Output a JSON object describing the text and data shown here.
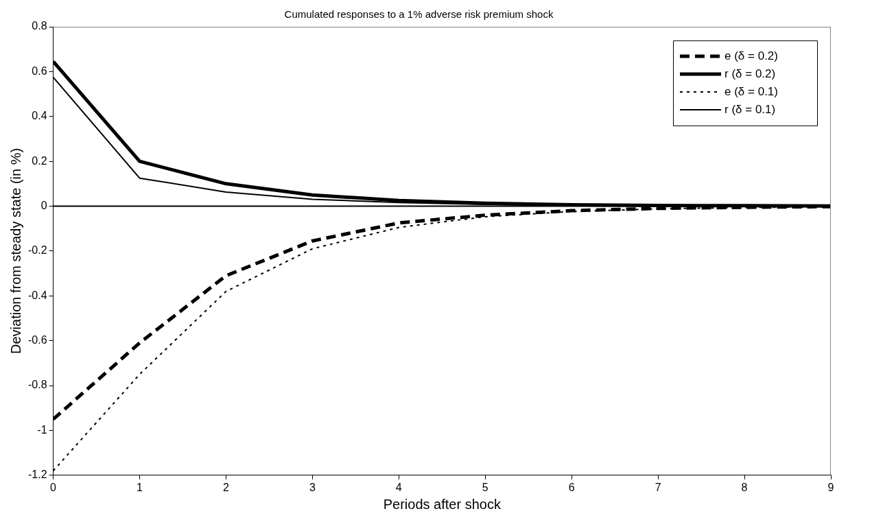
{
  "chart_data": {
    "type": "line",
    "title": "Cumulated responses to a 1% adverse risk premium shock",
    "xlabel": "Periods after shock",
    "ylabel": "Deviation from steady state (in %)",
    "x": [
      0,
      1,
      2,
      3,
      4,
      5,
      6,
      7,
      8,
      9
    ],
    "xlim": [
      0,
      9
    ],
    "xticks": [
      0,
      1,
      2,
      3,
      4,
      5,
      6,
      7,
      8,
      9
    ],
    "ylim": [
      -1.2,
      0.8
    ],
    "yticks": [
      -1.2,
      -1,
      -0.8,
      -0.6,
      -0.4,
      -0.2,
      0,
      0.2,
      0.4,
      0.6,
      0.8
    ],
    "legend": "top right",
    "grid": false,
    "marker": "none",
    "ref_lines": [
      {
        "axis": "y",
        "value": 0,
        "color": "#000000"
      }
    ],
    "series": [
      {
        "name": "e (δ = 0.2)",
        "color": "#000000",
        "line_style": "dashed",
        "values": [
          -0.95,
          -0.61,
          -0.31,
          -0.155,
          -0.075,
          -0.04,
          -0.02,
          -0.01,
          -0.005,
          -0.002
        ]
      },
      {
        "name": "r (δ = 0.2)",
        "color": "#000000",
        "line_style": "solid",
        "values": [
          0.645,
          0.2,
          0.1,
          0.05,
          0.025,
          0.013,
          0.006,
          0.003,
          0.002,
          0.001
        ]
      },
      {
        "name": "e (δ = 0.1)",
        "color": "#000000",
        "line_style": "dotted",
        "values": [
          -1.18,
          -0.75,
          -0.38,
          -0.19,
          -0.095,
          -0.047,
          -0.024,
          -0.012,
          -0.006,
          -0.003
        ]
      },
      {
        "name": "r (δ = 0.1)",
        "color": "#000000",
        "line_style": "solid",
        "values": [
          0.575,
          0.125,
          0.063,
          0.031,
          0.016,
          0.008,
          0.004,
          0.002,
          0.001,
          0.001
        ]
      }
    ]
  }
}
